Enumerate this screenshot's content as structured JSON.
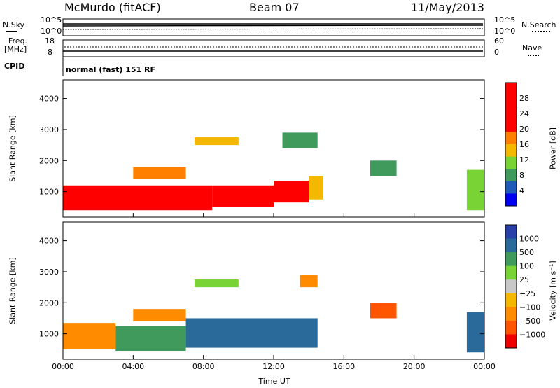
{
  "header": {
    "station": "McMurdo (fitACF)",
    "beam": "Beam 07",
    "date": "11/May/2013"
  },
  "top_panels": {
    "nsky_label": "N.Sky",
    "nsearch_label": "N.Search",
    "noise_ticks": [
      "10^5",
      "10^0"
    ],
    "freq_label": "Freq.",
    "freq_unit": "[MHz]",
    "freq_ticks": [
      "18",
      "8"
    ],
    "nave_label": "Nave",
    "nave_ticks": [
      "60",
      "0"
    ],
    "cpid_label": "CPID",
    "cpid_text": "normal (fast) 151 RF"
  },
  "colors": {
    "power_scale": [
      "#ff0000",
      "#ff0000",
      "#ff0000",
      "#ff0000",
      "#ff8000",
      "#f5b800",
      "#7ad334",
      "#3f9a5c",
      "#1f5ab8",
      "#0000f0"
    ],
    "velocity_scale": [
      "#2a3fa8",
      "#2a6a9a",
      "#3f9a5c",
      "#7ad334",
      "#c8c8c8",
      "#f5b800",
      "#ff8c00",
      "#ff5500",
      "#ee0000"
    ]
  },
  "chart_data": [
    {
      "type": "heatmap",
      "title": "",
      "quantity": "Power",
      "ylabel": "Slant Range [km]",
      "xlabel": "",
      "xlim": [
        "00:00",
        "24:00"
      ],
      "ylim": [
        180,
        4600
      ],
      "x_ticks": [
        "00:00",
        "04:00",
        "08:00",
        "12:00",
        "16:00",
        "20:00",
        "00:00"
      ],
      "y_ticks": [
        1000,
        2000,
        3000,
        4000
      ],
      "colorbar": {
        "label": "Power [dB]",
        "ticks": [
          "28",
          "24",
          "20",
          "16",
          "12",
          "8",
          "4"
        ],
        "range": [
          0,
          30
        ]
      },
      "regions": [
        {
          "t_start": 0.0,
          "t_end": 8.5,
          "range_low": 400,
          "range_high": 1200,
          "value": 30
        },
        {
          "t_start": 8.5,
          "t_end": 12.0,
          "range_low": 500,
          "range_high": 1200,
          "value": 28
        },
        {
          "t_start": 12.0,
          "t_end": 14.0,
          "range_low": 650,
          "range_high": 1350,
          "value": 24
        },
        {
          "t_start": 14.0,
          "t_end": 14.8,
          "range_low": 750,
          "range_high": 1500,
          "value": 14
        },
        {
          "t_start": 4.0,
          "t_end": 7.0,
          "range_low": 1400,
          "range_high": 1800,
          "value": 18
        },
        {
          "t_start": 7.5,
          "t_end": 10.0,
          "range_low": 2500,
          "range_high": 2750,
          "value": 14
        },
        {
          "t_start": 12.5,
          "t_end": 14.5,
          "range_low": 2400,
          "range_high": 2900,
          "value": 8
        },
        {
          "t_start": 17.5,
          "t_end": 19.0,
          "range_low": 1500,
          "range_high": 2000,
          "value": 7
        },
        {
          "t_start": 23.0,
          "t_end": 24.0,
          "range_low": 400,
          "range_high": 1700,
          "value": 10
        }
      ]
    },
    {
      "type": "heatmap",
      "title": "",
      "quantity": "Velocity",
      "ylabel": "Slant Range [km]",
      "xlabel": "Time UT",
      "xlim": [
        "00:00",
        "24:00"
      ],
      "ylim": [
        180,
        4600
      ],
      "x_ticks": [
        "00:00",
        "04:00",
        "08:00",
        "12:00",
        "16:00",
        "20:00",
        "00:00"
      ],
      "y_ticks": [
        1000,
        2000,
        3000,
        4000
      ],
      "colorbar": {
        "label": "Velocity [m s⁻¹]",
        "ticks": [
          "1000",
          "500",
          "100",
          "25",
          "−25",
          "−100",
          "−500",
          "−1000"
        ],
        "range": [
          -1000,
          1000
        ]
      },
      "regions": [
        {
          "t_start": 0.0,
          "t_end": 3.0,
          "range_low": 500,
          "range_high": 1350,
          "value": -120
        },
        {
          "t_start": 3.0,
          "t_end": 7.0,
          "range_low": 450,
          "range_high": 1250,
          "value": 60
        },
        {
          "t_start": 7.0,
          "t_end": 14.5,
          "range_low": 550,
          "range_high": 1500,
          "value": 300
        },
        {
          "t_start": 4.0,
          "t_end": 7.0,
          "range_low": 1400,
          "range_high": 1800,
          "value": -60
        },
        {
          "t_start": 7.5,
          "t_end": 10.0,
          "range_low": 2500,
          "range_high": 2750,
          "value": 20
        },
        {
          "t_start": 13.5,
          "t_end": 14.5,
          "range_low": 2500,
          "range_high": 2900,
          "value": -150
        },
        {
          "t_start": 17.5,
          "t_end": 19.0,
          "range_low": 1500,
          "range_high": 2000,
          "value": -200
        },
        {
          "t_start": 23.0,
          "t_end": 24.0,
          "range_low": 400,
          "range_high": 1700,
          "value": 150
        }
      ]
    }
  ]
}
